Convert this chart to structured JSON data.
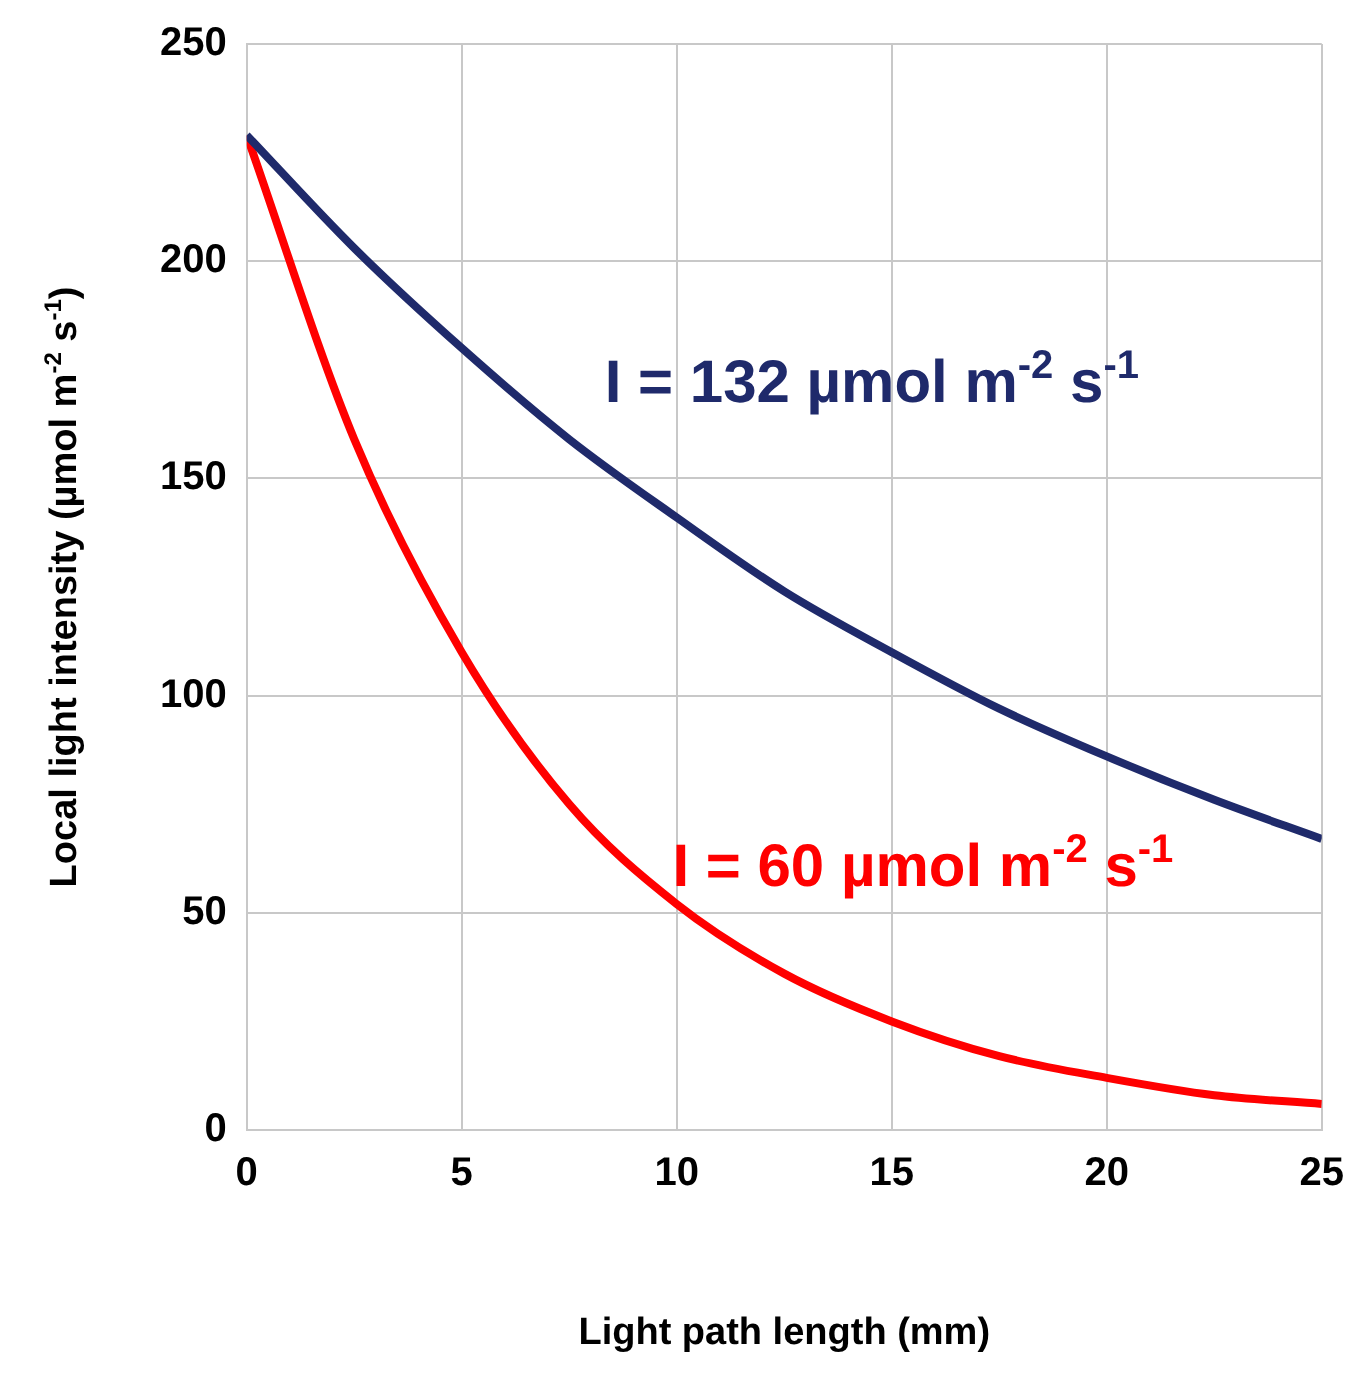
{
  "chart_data": {
    "type": "line",
    "xlabel": "Light path length (mm)",
    "ylabel": "Local light intensity (µmol m$^{-2}$ s$^{-1}$)",
    "x": [
      0,
      2.5,
      5,
      7.5,
      10,
      12.5,
      15,
      17.5,
      20,
      22.5,
      25
    ],
    "series": [
      {
        "name": "I = 132 µmol m$^{-2}$ s$^{-1}$",
        "color": "#1f2a6b",
        "values": [
          229,
          203,
          180,
          159,
          141,
          124,
          110,
          97,
          86,
          76,
          67
        ]
      },
      {
        "name": "I = 60 µmol m$^{-2}$ s$^{-1}$",
        "color": "#ff0000",
        "values": [
          229,
          159,
          110,
          75,
          52,
          36,
          25,
          17,
          12,
          8,
          6
        ]
      }
    ],
    "xlim": [
      0,
      25
    ],
    "xticks": [
      0,
      5,
      10,
      15,
      20,
      25
    ],
    "ylim": [
      0,
      250
    ],
    "yticks": [
      0,
      50,
      100,
      150,
      200,
      250
    ],
    "grid": true,
    "legend": false,
    "marker": "none",
    "line_style": "solid"
  }
}
